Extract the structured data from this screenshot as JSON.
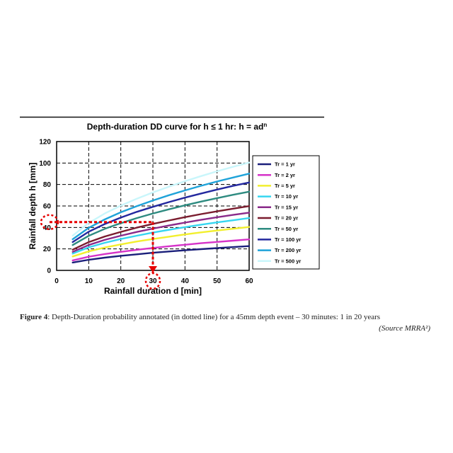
{
  "chart_data": {
    "type": "line",
    "title_main": "Depth-duration DD curve for h ≤ 1 hr: h = ad",
    "title_sup": "n",
    "xlabel": "Rainfall duration d [min]",
    "ylabel": "Rainfall depth h [mm]",
    "xlim": [
      0,
      60
    ],
    "ylim": [
      0,
      120
    ],
    "xticks": [
      "0",
      "10",
      "20",
      "30",
      "40",
      "50",
      "60"
    ],
    "yticks": [
      "0",
      "20",
      "40",
      "60",
      "80",
      "100",
      "120"
    ],
    "grid": true,
    "legend_position": "right",
    "x": [
      5,
      10,
      15,
      20,
      25,
      30,
      35,
      40,
      45,
      50,
      55,
      60
    ],
    "series": [
      {
        "name": "Tr = 1 yr",
        "color": "#1a1f7a",
        "values": [
          7.3,
          9.9,
          11.9,
          13.6,
          15.0,
          16.4,
          17.6,
          18.7,
          19.8,
          20.8,
          21.7,
          22.6
        ]
      },
      {
        "name": "Tr = 2 yr",
        "color": "#d633c9",
        "values": [
          9.3,
          12.7,
          15.2,
          17.3,
          19.2,
          20.9,
          22.5,
          23.9,
          25.3,
          26.5,
          27.7,
          28.9
        ]
      },
      {
        "name": "Tr = 5 yr",
        "color": "#f2ef2e",
        "values": [
          13.0,
          17.7,
          21.3,
          24.2,
          26.9,
          29.2,
          31.4,
          33.5,
          35.4,
          37.1,
          38.8,
          40.4
        ]
      },
      {
        "name": "Tr = 10 yr",
        "color": "#36d6f0",
        "values": [
          15.6,
          21.4,
          25.7,
          29.2,
          32.3,
          35.2,
          37.8,
          40.3,
          42.6,
          44.7,
          46.7,
          48.7
        ]
      },
      {
        "name": "Tr = 15 yr",
        "color": "#8a2a8a",
        "values": [
          17.3,
          23.6,
          28.4,
          32.3,
          35.8,
          38.9,
          41.8,
          44.5,
          47.1,
          49.5,
          51.7,
          53.8
        ]
      },
      {
        "name": "Tr = 20 yr",
        "color": "#7a1c2e",
        "values": [
          19.3,
          26.3,
          31.6,
          35.9,
          39.8,
          43.3,
          46.5,
          49.6,
          52.4,
          55.0,
          57.5,
          59.9
        ]
      },
      {
        "name": "Tr = 50 yr",
        "color": "#2e8b80",
        "values": [
          23.6,
          32.2,
          38.7,
          44.0,
          48.7,
          53.0,
          56.9,
          60.6,
          64.1,
          67.3,
          70.4,
          73.3
        ]
      },
      {
        "name": "Tr = 100 yr",
        "color": "#23289e",
        "values": [
          26.4,
          36.0,
          43.2,
          49.2,
          54.5,
          59.2,
          63.6,
          67.8,
          71.6,
          75.3,
          78.7,
          81.9
        ]
      },
      {
        "name": "Tr = 200 yr",
        "color": "#1fa3d9",
        "values": [
          29.0,
          39.6,
          47.5,
          54.1,
          59.9,
          65.1,
          70.0,
          74.5,
          78.8,
          82.8,
          86.5,
          90.1
        ]
      },
      {
        "name": "Tr = 500 yr",
        "color": "#c9f6fb",
        "values": [
          32.4,
          44.1,
          53.0,
          60.3,
          66.8,
          72.6,
          78.0,
          83.1,
          87.8,
          92.3,
          96.5,
          100.4
        ]
      }
    ],
    "annotation": {
      "x": 30,
      "y": 45,
      "color": "#e60000"
    }
  },
  "caption": {
    "label": "Figure 4",
    "text": ": Depth-Duration probability annotated (in dotted line) for a 45mm depth event – 30 minutes: 1 in 20 years",
    "source": "(Source MRRA²)"
  }
}
